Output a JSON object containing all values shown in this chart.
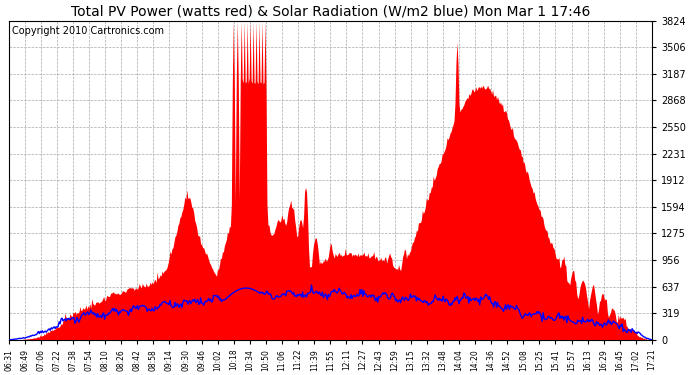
{
  "title": "Total PV Power (watts red) & Solar Radiation (W/m2 blue) Mon Mar 1 17:46",
  "copyright": "Copyright 2010 Cartronics.com",
  "y_max": 3824.4,
  "y_min": 0.0,
  "y_ticks": [
    0.0,
    318.7,
    637.4,
    956.1,
    1274.8,
    1593.5,
    1912.2,
    2230.9,
    2549.6,
    2868.3,
    3187.0,
    3505.7,
    3824.4
  ],
  "x_labels": [
    "06:31",
    "06:49",
    "07:06",
    "07:22",
    "07:38",
    "07:54",
    "08:10",
    "08:26",
    "08:42",
    "08:58",
    "09:14",
    "09:30",
    "09:46",
    "10:02",
    "10:18",
    "10:34",
    "10:50",
    "11:06",
    "11:22",
    "11:39",
    "11:55",
    "12:11",
    "12:27",
    "12:43",
    "12:59",
    "13:15",
    "13:32",
    "13:48",
    "14:04",
    "14:20",
    "14:36",
    "14:52",
    "15:08",
    "15:25",
    "15:41",
    "15:57",
    "16:13",
    "16:29",
    "16:45",
    "17:02",
    "17:21"
  ],
  "pv_color": "#FF0000",
  "solar_color": "#0000FF",
  "bg_color": "#FFFFFF",
  "grid_color": "#AAAAAA",
  "title_fontsize": 10,
  "copyright_fontsize": 7
}
